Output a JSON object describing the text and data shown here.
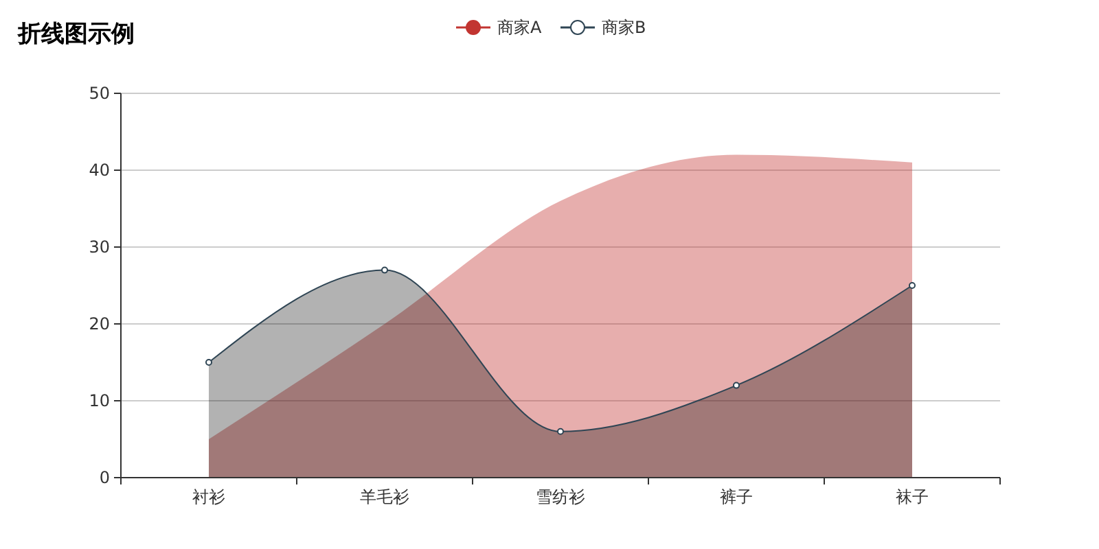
{
  "chart_data": {
    "type": "area",
    "title": "折线图示例",
    "categories": [
      "衬衫",
      "羊毛衫",
      "雪纺衫",
      "裤子",
      "袜子"
    ],
    "series": [
      {
        "name": "商家A",
        "color": "#c23531",
        "values": [
          5,
          20,
          36,
          42,
          41
        ],
        "marker": "none"
      },
      {
        "name": "商家B",
        "color": "#2f4554",
        "values": [
          15,
          27,
          6,
          12,
          25
        ],
        "marker": "circle"
      }
    ],
    "ylim": [
      0,
      50
    ],
    "yticks": [
      0,
      10,
      20,
      30,
      40,
      50
    ],
    "grid": "y",
    "legend": "top"
  }
}
